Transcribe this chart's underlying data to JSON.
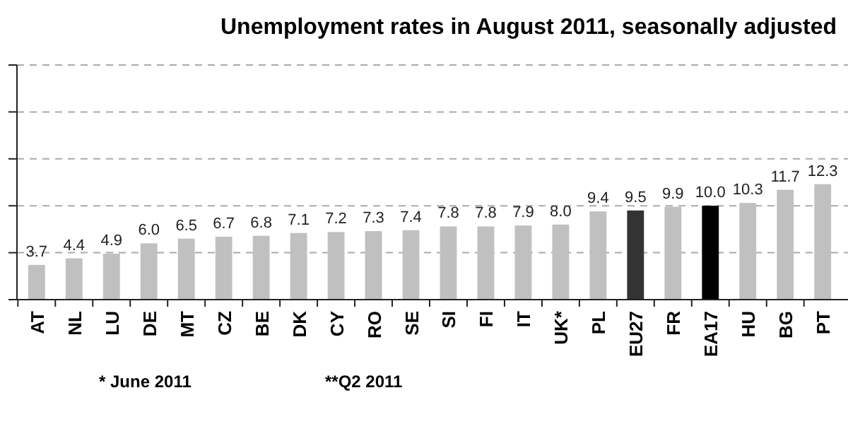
{
  "chart_data": {
    "type": "bar",
    "title": "Unemployment rates in August 2011, seasonally adjusted",
    "categories": [
      "AT",
      "NL",
      "LU",
      "DE",
      "MT",
      "CZ",
      "BE",
      "DK",
      "CY",
      "RO",
      "SE",
      "SI",
      "FI",
      "IT",
      "UK*",
      "PL",
      "EU27",
      "FR",
      "EA17",
      "HU",
      "BG",
      "PT"
    ],
    "values": [
      3.7,
      4.4,
      4.9,
      6.0,
      6.5,
      6.7,
      6.8,
      7.1,
      7.2,
      7.3,
      7.4,
      7.8,
      7.8,
      7.9,
      8.0,
      9.4,
      9.5,
      9.9,
      10.0,
      10.3,
      11.7,
      12.3
    ],
    "colors": [
      "#c0c0c0",
      "#c0c0c0",
      "#c0c0c0",
      "#c0c0c0",
      "#c0c0c0",
      "#c0c0c0",
      "#c0c0c0",
      "#c0c0c0",
      "#c0c0c0",
      "#c0c0c0",
      "#c0c0c0",
      "#c0c0c0",
      "#c0c0c0",
      "#c0c0c0",
      "#c0c0c0",
      "#c0c0c0",
      "#333333",
      "#c0c0c0",
      "#000000",
      "#c0c0c0",
      "#c0c0c0",
      "#c0c0c0"
    ],
    "ylim": [
      0,
      25
    ],
    "yticks": [
      {
        "value": 0,
        "label": null
      },
      {
        "value": 5,
        "label": null
      },
      {
        "value": 10,
        "label": null
      },
      {
        "value": 15,
        "label": null
      },
      {
        "value": 20,
        "label": null
      },
      {
        "value": 25,
        "label": null
      }
    ],
    "value_labels": [
      "3.7",
      "4.4",
      "4.9",
      "6.0",
      "6.5",
      "6.7",
      "6.8",
      "7.1",
      "7.2",
      "7.3",
      "7.4",
      "7.8",
      "7.8",
      "7.9",
      "8.0",
      "9.4",
      "9.5",
      "9.9",
      "10.0",
      "10.3",
      "11.7",
      "12.3"
    ],
    "tick_labels": "x",
    "grid": "y",
    "annotations": [
      "* June 2011",
      "**Q2 2011"
    ]
  }
}
